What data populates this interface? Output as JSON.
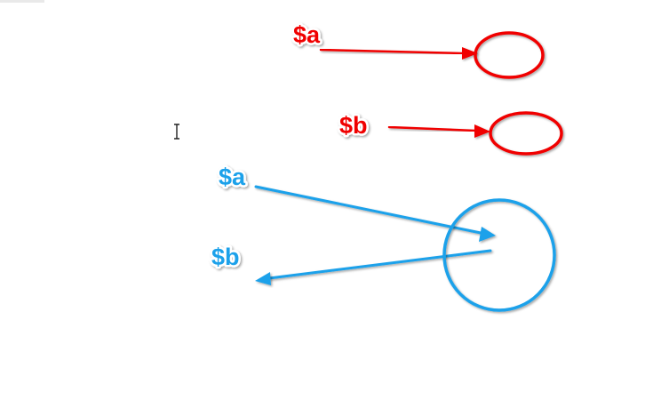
{
  "labels": {
    "red_a": "$a",
    "red_b": "$b",
    "blue_a": "$a",
    "blue_b": "$b"
  },
  "colors": {
    "red": "#f00000",
    "blue": "#1aa1ea",
    "background": "#ffffff"
  },
  "cursor_icon": "text-cursor-icon"
}
